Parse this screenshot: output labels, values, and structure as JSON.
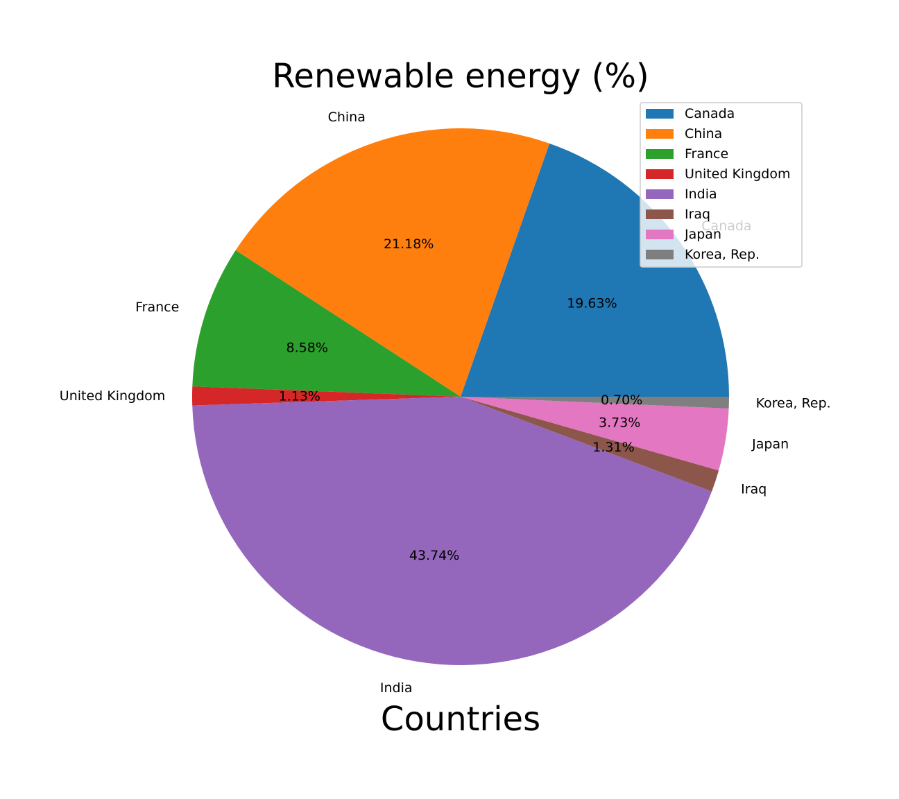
{
  "chart_data": {
    "type": "pie",
    "title": "Renewable energy (%)",
    "xlabel": "Countries",
    "categories": [
      "Canada",
      "China",
      "France",
      "United Kingdom",
      "India",
      "Iraq",
      "Japan",
      "Korea, Rep."
    ],
    "values": [
      19.63,
      21.18,
      8.58,
      1.13,
      43.74,
      1.31,
      3.73,
      0.7
    ],
    "value_labels": [
      "19.63%",
      "21.18%",
      "8.58%",
      "1.13%",
      "43.74%",
      "1.31%",
      "3.73%",
      "0.70%"
    ],
    "colors": [
      "#1f77b4",
      "#ff7f0e",
      "#2ca02c",
      "#d62728",
      "#9467bd",
      "#8c564b",
      "#e377c2",
      "#7f7f7f"
    ],
    "start_angle_deg": 0,
    "direction": "counterclockwise",
    "legend": {
      "placement": "upper right",
      "entries": [
        "Canada",
        "China",
        "France",
        "United Kingdom",
        "India",
        "Iraq",
        "Japan",
        "Korea, Rep."
      ]
    }
  }
}
